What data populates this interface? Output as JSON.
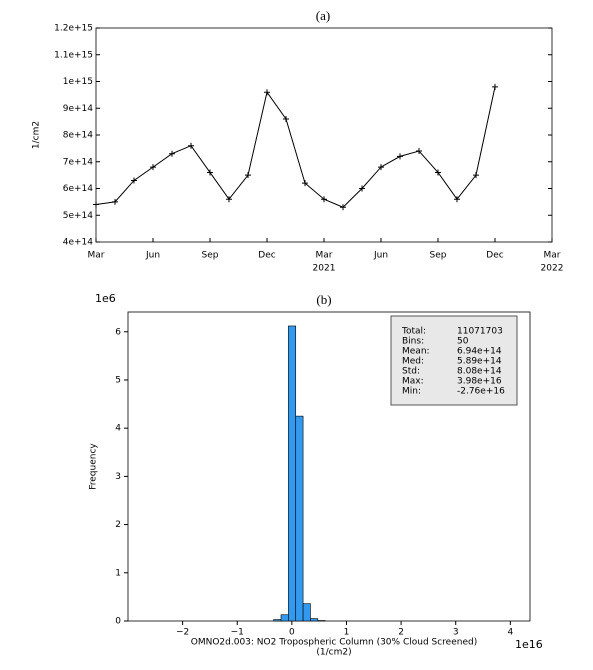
{
  "chart_data": [
    {
      "type": "line",
      "title": "(a)",
      "ylabel": "1/cm2",
      "color": "#000000",
      "marker": "+",
      "x": [
        "2020-03",
        "2020-04",
        "2020-05",
        "2020-06",
        "2020-07",
        "2020-08",
        "2020-09",
        "2020-10",
        "2020-11",
        "2020-12",
        "2021-01",
        "2021-02",
        "2021-03",
        "2021-04",
        "2021-05",
        "2021-06",
        "2021-07",
        "2021-08",
        "2021-09",
        "2021-10",
        "2021-11",
        "2021-12"
      ],
      "values": [
        540000000000000.0,
        550000000000000.0,
        630000000000000.0,
        680000000000000.0,
        730000000000000.0,
        760000000000000.0,
        660000000000000.0,
        560000000000000.0,
        650000000000000.0,
        960000000000000.0,
        860000000000000.0,
        620000000000000.0,
        560000000000000.0,
        530000000000000.0,
        600000000000000.0,
        680000000000000.0,
        720000000000000.0,
        740000000000000.0,
        660000000000000.0,
        560000000000000.0,
        650000000000000.0,
        980000000000000.0
      ],
      "xlim": [
        "2020-03",
        "2022-03"
      ],
      "xticks": [
        {
          "value": "2020-03",
          "label": "Mar"
        },
        {
          "value": "2020-06",
          "label": "Jun"
        },
        {
          "value": "2020-09",
          "label": "Sep"
        },
        {
          "value": "2020-12",
          "label": "Dec"
        },
        {
          "value": "2021-03",
          "label": "Mar"
        },
        {
          "value": "2021-06",
          "label": "Jun"
        },
        {
          "value": "2021-09",
          "label": "Sep"
        },
        {
          "value": "2021-12",
          "label": "Dec"
        },
        {
          "value": "2022-03",
          "label": "Mar"
        }
      ],
      "xtick_years": [
        {
          "value": "2021-03",
          "label": "2021"
        },
        {
          "value": "2022-03",
          "label": "2022"
        }
      ],
      "ylim": [
        400000000000000.0,
        1200000000000000.0
      ],
      "yticks": [
        {
          "value": 400000000000000.0,
          "label": "4e+14"
        },
        {
          "value": 500000000000000.0,
          "label": "5e+14"
        },
        {
          "value": 600000000000000.0,
          "label": "6e+14"
        },
        {
          "value": 700000000000000.0,
          "label": "7e+14"
        },
        {
          "value": 800000000000000.0,
          "label": "8e+14"
        },
        {
          "value": 900000000000000.0,
          "label": "9e+14"
        },
        {
          "value": 1000000000000000.0,
          "label": "1e+15"
        },
        {
          "value": 1100000000000000.0,
          "label": "1.1e+15"
        },
        {
          "value": 1200000000000000.0,
          "label": "1.2e+15"
        }
      ]
    },
    {
      "type": "histogram",
      "title": "(b)",
      "ylabel": "Frequency",
      "xlabel": [
        "OMNO2d.003: NO2 Tropospheric Column (30% Cloud Screened)",
        "(1/cm2)"
      ],
      "x_offset_label": "1e16",
      "y_offset_label": "1e6",
      "color": "#3399ee",
      "bins": [
        -2.76e+16,
        -2.6252e+16,
        -2.4904e+16,
        -2.3556e+16,
        -2.2208e+16,
        -2.086e+16,
        -1.9512e+16,
        -1.8164e+16,
        -1.6816e+16,
        -1.5468e+16,
        -1.412e+16,
        -1.2772e+16,
        -1.1424e+16,
        -1.0076e+16,
        -8728000000000000.0,
        -7380000000000000.0,
        -6032000000000000.0,
        -4684000000000000.0,
        -3336000000000000.0,
        -1988000000000000.0,
        -640000000000000.0,
        708000000000000.0,
        2056000000000000.0,
        3404000000000000.0,
        4752000000000000.0,
        6100000000000000.0,
        7448000000000000.0,
        8796000000000000.0,
        1.0144e+16,
        1.1492e+16,
        1.284e+16,
        1.4188e+16,
        1.5536e+16,
        1.6884e+16,
        1.8232e+16,
        1.958e+16,
        2.0928e+16,
        2.2276e+16,
        2.3624e+16,
        2.4972e+16,
        2.632e+16,
        2.7668e+16,
        2.9016e+16,
        3.0364e+16,
        3.1712e+16,
        3.306e+16,
        3.4408e+16,
        3.5756e+16,
        3.7104e+16,
        3.8452e+16,
        3.98e+16
      ],
      "counts": [
        0,
        0,
        0,
        0,
        0,
        0,
        0,
        0,
        0,
        0,
        0,
        0,
        0,
        0,
        0,
        0,
        0,
        0,
        30000,
        130000,
        6120000,
        4250000,
        360000,
        50000,
        10000,
        0,
        0,
        0,
        0,
        0,
        0,
        0,
        0,
        0,
        0,
        0,
        0,
        0,
        0,
        0,
        0,
        0,
        0,
        0,
        0,
        0,
        0,
        0,
        0,
        0
      ],
      "xlim": [
        -3e+16,
        4.36e+16
      ],
      "xticks": [
        {
          "value": -2e+16,
          "label": "−2"
        },
        {
          "value": -1e+16,
          "label": "−1"
        },
        {
          "value": 0,
          "label": "0"
        },
        {
          "value": 1e+16,
          "label": "1"
        },
        {
          "value": 2e+16,
          "label": "2"
        },
        {
          "value": 3e+16,
          "label": "3"
        },
        {
          "value": 4e+16,
          "label": "4"
        }
      ],
      "ylim": [
        0,
        6410000.0
      ],
      "yticks": [
        {
          "value": 0,
          "label": "0"
        },
        {
          "value": 1000000.0,
          "label": "1"
        },
        {
          "value": 2000000.0,
          "label": "2"
        },
        {
          "value": 3000000.0,
          "label": "3"
        },
        {
          "value": 4000000.0,
          "label": "4"
        },
        {
          "value": 5000000.0,
          "label": "5"
        },
        {
          "value": 6000000.0,
          "label": "6"
        }
      ],
      "stats": [
        {
          "label": "Total:",
          "value": "11071703"
        },
        {
          "label": "Bins:",
          "value": "50"
        },
        {
          "label": "Mean:",
          "value": "6.94e+14"
        },
        {
          "label": "Med:",
          "value": "5.89e+14"
        },
        {
          "label": "Std:",
          "value": "8.08e+14"
        },
        {
          "label": "Max:",
          "value": "3.98e+16"
        },
        {
          "label": "Min:",
          "value": "-2.76e+16"
        }
      ]
    }
  ]
}
